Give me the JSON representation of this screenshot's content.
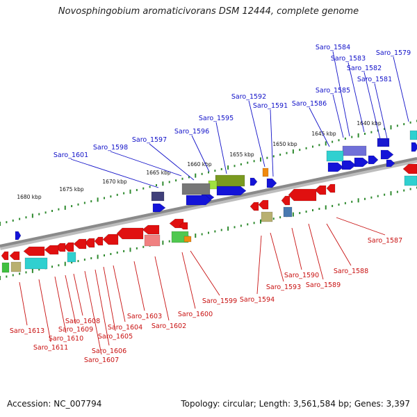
{
  "title": "Novosphingobium aromaticivorans DSM 12444, complete genome",
  "footer": {
    "accession": "Accession: NC_007794",
    "summary": "Topology: circular; Length: 3,561,584 bp; Genes: 3,397"
  },
  "colors": {
    "top_labels": "#1010c8",
    "bottom_labels": "#c81010",
    "ticks": "#2f8a2f",
    "backbone": "#8a8a8a"
  },
  "kbp_labels": [
    "1640 kbp",
    "1645 kbp",
    "1650 kbp",
    "1655 kbp",
    "1660 kbp",
    "1665 kbp",
    "1670 kbp",
    "1675 kbp",
    "1680 kbp"
  ],
  "top_genes": [
    "Saro_1579",
    "Saro_1581",
    "Saro_1582",
    "Saro_1583",
    "Saro_1584",
    "Saro_1585",
    "Saro_1586",
    "Saro_1591",
    "Saro_1592",
    "Saro_1595",
    "Saro_1596",
    "Saro_1597",
    "Saro_1598",
    "Saro_1601"
  ],
  "bottom_genes": [
    "Saro_1587",
    "Saro_1588",
    "Saro_1589",
    "Saro_1590",
    "Saro_1593",
    "Saro_1594",
    "Saro_1599",
    "Saro_1600",
    "Saro_1602",
    "Saro_1603",
    "Saro_1604",
    "Saro_1605",
    "Saro_1606",
    "Saro_1607",
    "Saro_1608",
    "Saro_1609",
    "Saro_1610",
    "Saro_1611",
    "Saro_1613"
  ]
}
